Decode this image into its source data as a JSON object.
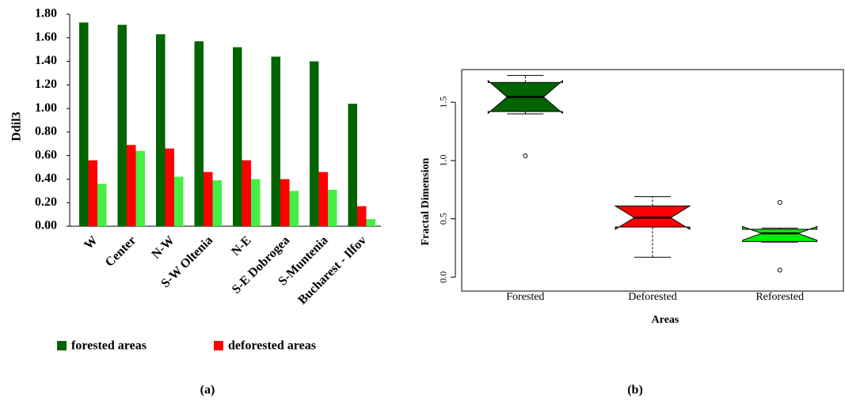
{
  "chart_data": [
    {
      "type": "bar",
      "label": "(a)",
      "ylabel": "Ddil3",
      "categories": [
        "W",
        "Center",
        "N-W",
        "S-W Oltenia",
        "N-E",
        "S-E Dobrogea",
        "S-Muntenia",
        "Bucharest - Ilfov"
      ],
      "series": [
        {
          "name": "forested areas",
          "color": "#006400",
          "values": [
            1.73,
            1.71,
            1.63,
            1.57,
            1.52,
            1.44,
            1.4,
            1.04
          ]
        },
        {
          "name": "deforested areas",
          "color": "#ff0000",
          "values": [
            0.56,
            0.69,
            0.66,
            0.46,
            0.56,
            0.4,
            0.46,
            0.17
          ]
        },
        {
          "color": "#44ee44",
          "values": [
            0.36,
            0.64,
            0.42,
            0.39,
            0.4,
            0.3,
            0.31,
            0.06
          ]
        }
      ],
      "ylim": [
        0,
        1.8
      ],
      "yticks": [
        {
          "value": 0,
          "label": "0.00"
        },
        {
          "value": 0.2,
          "label": "0.20"
        },
        {
          "value": 0.4,
          "label": "0.40"
        },
        {
          "value": 0.6,
          "label": "0.60"
        },
        {
          "value": 0.8,
          "label": "0.80"
        },
        {
          "value": 1,
          "label": "1.00"
        },
        {
          "value": 1.2,
          "label": "1.20"
        },
        {
          "value": 1.4,
          "label": "1.40"
        },
        {
          "value": 1.6,
          "label": "1.60"
        },
        {
          "value": 1.8,
          "label": "1.80"
        }
      ],
      "legend": "bottom"
    },
    {
      "type": "box",
      "label": "(b)",
      "xlabel": "Areas",
      "ylabel": "Fractal Dimension",
      "categories": [
        "Forested",
        "Deforested",
        "Reforested"
      ],
      "boxes": [
        {
          "color": "#006400",
          "low": 1.4,
          "q1": 1.42,
          "median": 1.545,
          "q3": 1.67,
          "high": 1.73,
          "notch": [
            1.405,
            1.685
          ],
          "outliers": [
            1.04
          ]
        },
        {
          "color": "#ff0000",
          "low": 0.17,
          "q1": 0.43,
          "median": 0.51,
          "q3": 0.61,
          "high": 0.69,
          "notch": [
            0.41,
            0.61
          ],
          "outliers": []
        },
        {
          "color": "#00ee00",
          "low": 0.3,
          "q1": 0.305,
          "median": 0.375,
          "q3": 0.41,
          "high": 0.42,
          "notch": [
            0.316,
            0.434
          ],
          "outliers": [
            0.64,
            0.06
          ]
        }
      ],
      "ylim": [
        -0.12,
        1.78
      ],
      "yticks": [
        {
          "value": 0,
          "label": "0.0"
        },
        0.5,
        {
          "value": 1,
          "label": "1.0"
        },
        1.5
      ]
    }
  ]
}
